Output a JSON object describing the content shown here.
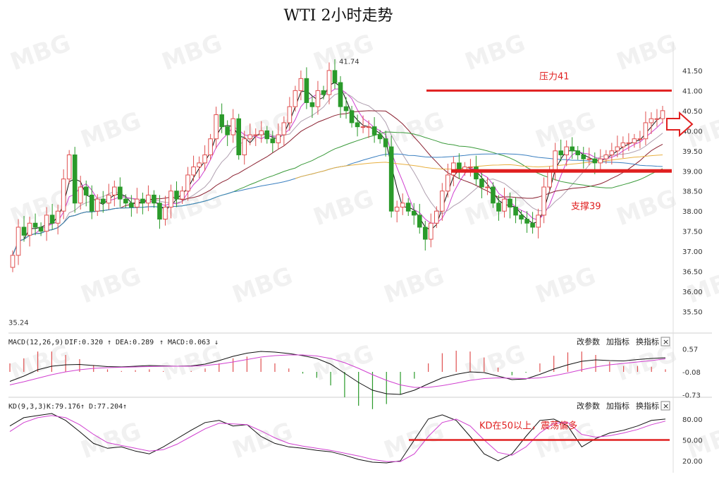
{
  "title": "WTI 2小时走势",
  "colors": {
    "up": "#e05050",
    "down": "#2a9a2a",
    "resistance": "#e02020",
    "ma1": "#111111",
    "ma2": "#d040d0",
    "ma3": "#b0a0b0",
    "ma4": "#8a2030",
    "ma5": "#3a9a3a",
    "ma6": "#3a7fc0",
    "ma7": "#e8b040"
  },
  "watermark": "MBG",
  "buttons": {
    "params": "改参数",
    "add": "加指标",
    "switch": "换指标",
    "close": "×"
  },
  "chart_data": {
    "type": "candlestick",
    "title": "WTI 2小时走势",
    "main": {
      "y_ticks": [
        "41.50",
        "41.00",
        "40.50",
        "40.00",
        "39.50",
        "39.00",
        "38.50",
        "38.00",
        "37.50",
        "37.00",
        "36.50",
        "36.00",
        "35.50"
      ],
      "ylim": [
        35.0,
        41.85
      ],
      "max_label": "41.74",
      "min_label": "35.24",
      "annotations": [
        {
          "text": "压力41",
          "value": 41.0
        },
        {
          "text": "支撑39",
          "value": 39.0
        }
      ],
      "candles_close": [
        36.9,
        37.6,
        37.4,
        37.7,
        37.6,
        37.5,
        37.9,
        37.7,
        38.0,
        38.8,
        39.4,
        38.2,
        38.6,
        38.4,
        38.0,
        38.3,
        38.2,
        38.4,
        38.6,
        38.3,
        38.2,
        38.1,
        38.3,
        38.2,
        38.4,
        38.2,
        37.8,
        38.1,
        38.5,
        38.3,
        38.5,
        38.9,
        39.1,
        39.2,
        39.4,
        39.8,
        40.4,
        40.1,
        39.9,
        40.3,
        39.4,
        39.8,
        39.9,
        39.9,
        40.0,
        39.8,
        39.7,
        39.9,
        40.2,
        40.6,
        41.0,
        41.3,
        40.7,
        40.6,
        41.0,
        40.9,
        41.5,
        41.2,
        40.6,
        40.5,
        40.2,
        40.1,
        40.1,
        40.1,
        39.9,
        39.8,
        39.6,
        38.0,
        38.1,
        38.2,
        38.0,
        37.9,
        37.6,
        37.3,
        37.7,
        38.0,
        38.5,
        38.9,
        39.2,
        39.0,
        39.1,
        39.1,
        38.8,
        38.6,
        38.6,
        38.2,
        38.0,
        38.3,
        38.1,
        37.9,
        37.8,
        37.7,
        37.6,
        37.9,
        38.6,
        39.0,
        39.5,
        39.4,
        39.6,
        39.5,
        39.4,
        39.3,
        39.3,
        39.2,
        39.3,
        39.4,
        39.5,
        39.6,
        39.7,
        39.7,
        39.8,
        39.8,
        40.2,
        40.3,
        40.3,
        40.5
      ]
    },
    "macd": {
      "label": "MACD(12,26,9)",
      "dif": "DIF:0.320",
      "dea": "DEA:0.289",
      "macd": "MACD:0.063",
      "arrows": [
        "↑",
        "↑",
        "↓"
      ],
      "y_ticks": [
        "0.57",
        "-0.08",
        "-0.73"
      ],
      "ylim": [
        -0.78,
        0.62
      ],
      "dif_values": [
        -0.35,
        -0.2,
        -0.02,
        0.08,
        0.12,
        0.13,
        0.1,
        0.07,
        0.06,
        0.08,
        0.1,
        0.09,
        0.08,
        0.09,
        0.14,
        0.24,
        0.36,
        0.45,
        0.5,
        0.48,
        0.44,
        0.38,
        0.3,
        0.14,
        -0.12,
        -0.38,
        -0.6,
        -0.7,
        -0.72,
        -0.6,
        -0.42,
        -0.25,
        -0.15,
        -0.08,
        -0.1,
        -0.2,
        -0.3,
        -0.28,
        -0.15,
        0.0,
        0.12,
        0.22,
        0.26,
        0.24,
        0.23,
        0.27,
        0.3,
        0.32
      ],
      "dea_values": [
        -0.45,
        -0.36,
        -0.26,
        -0.16,
        -0.08,
        -0.02,
        0.02,
        0.04,
        0.05,
        0.06,
        0.07,
        0.08,
        0.08,
        0.08,
        0.1,
        0.14,
        0.2,
        0.27,
        0.34,
        0.38,
        0.4,
        0.4,
        0.37,
        0.3,
        0.18,
        0.02,
        -0.16,
        -0.32,
        -0.45,
        -0.52,
        -0.52,
        -0.47,
        -0.4,
        -0.32,
        -0.27,
        -0.25,
        -0.26,
        -0.27,
        -0.25,
        -0.19,
        -0.11,
        -0.02,
        0.06,
        0.12,
        0.16,
        0.2,
        0.24,
        0.29
      ]
    },
    "kd": {
      "label": "KD(9,3,3)",
      "k": "K:79.176",
      "d": "D:77.204",
      "arrows": [
        "↑",
        "↑"
      ],
      "y_ticks": [
        "80.00",
        "50.00",
        "20.00"
      ],
      "ylim": [
        15,
        90
      ],
      "annotation": {
        "text": "KD在50以上，震荡偏多",
        "value": 50
      },
      "k_values": [
        70,
        82,
        85,
        88,
        78,
        62,
        45,
        38,
        40,
        34,
        30,
        40,
        52,
        64,
        75,
        78,
        70,
        72,
        55,
        45,
        40,
        38,
        35,
        33,
        28,
        22,
        18,
        17,
        20,
        50,
        80,
        86,
        78,
        55,
        30,
        20,
        30,
        55,
        78,
        80,
        70,
        40,
        52,
        60,
        64,
        70,
        78,
        80
      ],
      "d_values": [
        62,
        75,
        82,
        85,
        82,
        72,
        58,
        46,
        42,
        38,
        34,
        36,
        44,
        55,
        66,
        74,
        73,
        72,
        63,
        53,
        45,
        41,
        38,
        35,
        31,
        27,
        22,
        19,
        19,
        30,
        55,
        75,
        80,
        70,
        50,
        32,
        28,
        40,
        60,
        74,
        75,
        58,
        54,
        56,
        60,
        65,
        72,
        77
      ]
    }
  }
}
